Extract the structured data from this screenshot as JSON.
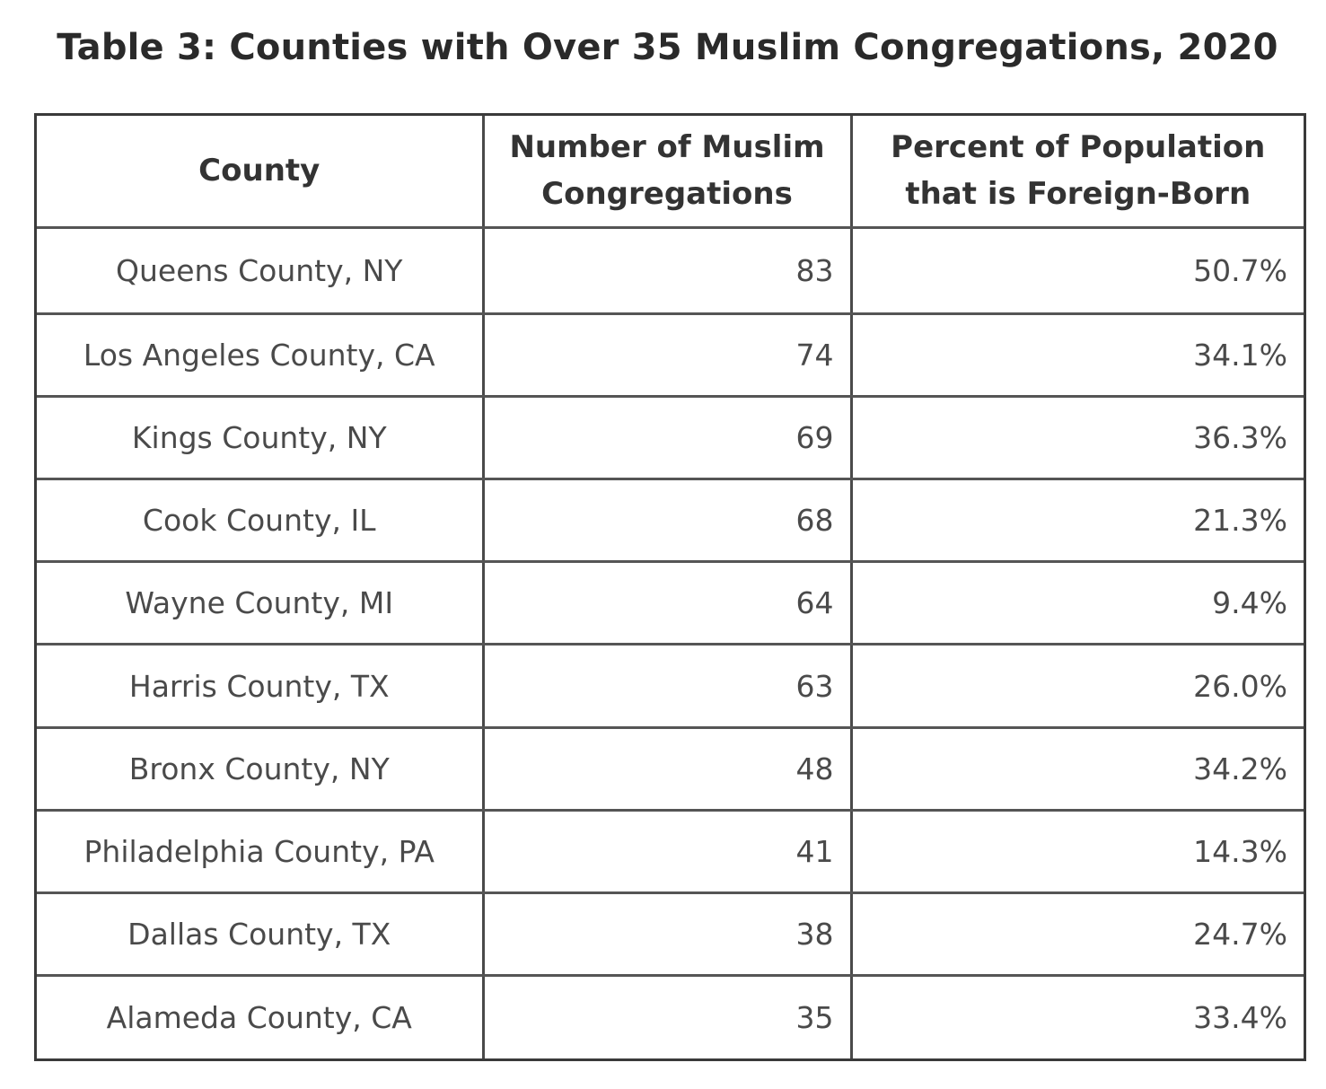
{
  "title": "Table 3: Counties with Over 35 Muslim Congregations, 2020",
  "table": {
    "headers": [
      "County",
      "Number of Muslim Congregations",
      "Percent of Population that is Foreign-Born"
    ],
    "rows": [
      [
        "Queens County, NY",
        "83",
        "50.7%"
      ],
      [
        "Los Angeles County, CA",
        "74",
        "34.1%"
      ],
      [
        "Kings County, NY",
        "69",
        "36.3%"
      ],
      [
        "Cook County, IL",
        "68",
        "21.3%"
      ],
      [
        "Wayne County, MI",
        "64",
        "9.4%"
      ],
      [
        "Harris County, TX",
        "63",
        "26.0%"
      ],
      [
        "Bronx County, NY",
        "48",
        "34.2%"
      ],
      [
        "Philadelphia County, PA",
        "41",
        "14.3%"
      ],
      [
        "Dallas County, TX",
        "38",
        "24.7%"
      ],
      [
        "Alameda County, CA",
        "35",
        "33.4%"
      ]
    ]
  }
}
